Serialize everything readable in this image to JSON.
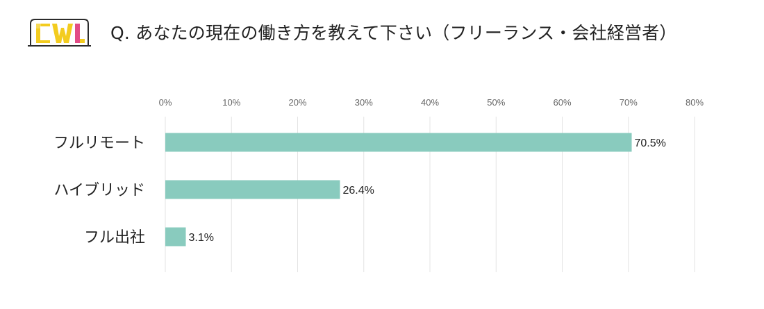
{
  "header": {
    "logo_text": "CWL",
    "title": "Q. あなたの現在の働き方を教えて下さい（フリーランス・会社経営者）"
  },
  "colors": {
    "bar": "#89cbbe",
    "grid": "#e3e3e3",
    "logo_yellow": "#f3cc1f",
    "logo_pink": "#e24c86",
    "logo_frame": "#2b2b2b"
  },
  "chart_data": {
    "type": "bar",
    "orientation": "horizontal",
    "categories": [
      "フルリモート",
      "ハイブリッド",
      "フル出社"
    ],
    "values": [
      70.5,
      26.4,
      3.1
    ],
    "value_labels": [
      "70.5%",
      "26.4%",
      "3.1%"
    ],
    "xlim": [
      0,
      80
    ],
    "xticks": [
      "0%",
      "10%",
      "20%",
      "30%",
      "40%",
      "50%",
      "60%",
      "70%",
      "80%"
    ],
    "axis_position": "top",
    "grid": true,
    "legend": "none"
  }
}
